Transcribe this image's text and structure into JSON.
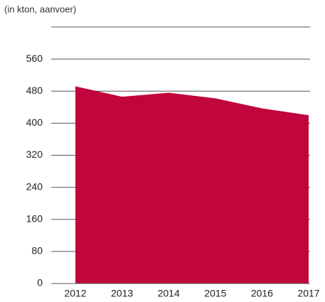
{
  "chart_data": {
    "type": "area",
    "subtitle": "(in kton, aanvoer)",
    "categories": [
      "2012",
      "2013",
      "2014",
      "2015",
      "2016",
      "2017"
    ],
    "values": [
      492,
      466,
      476,
      462,
      437,
      420
    ],
    "color": "#c0063c",
    "ylim": [
      0,
      640
    ],
    "yticks": [
      0,
      80,
      160,
      240,
      320,
      400,
      480,
      560
    ],
    "grid": true
  }
}
